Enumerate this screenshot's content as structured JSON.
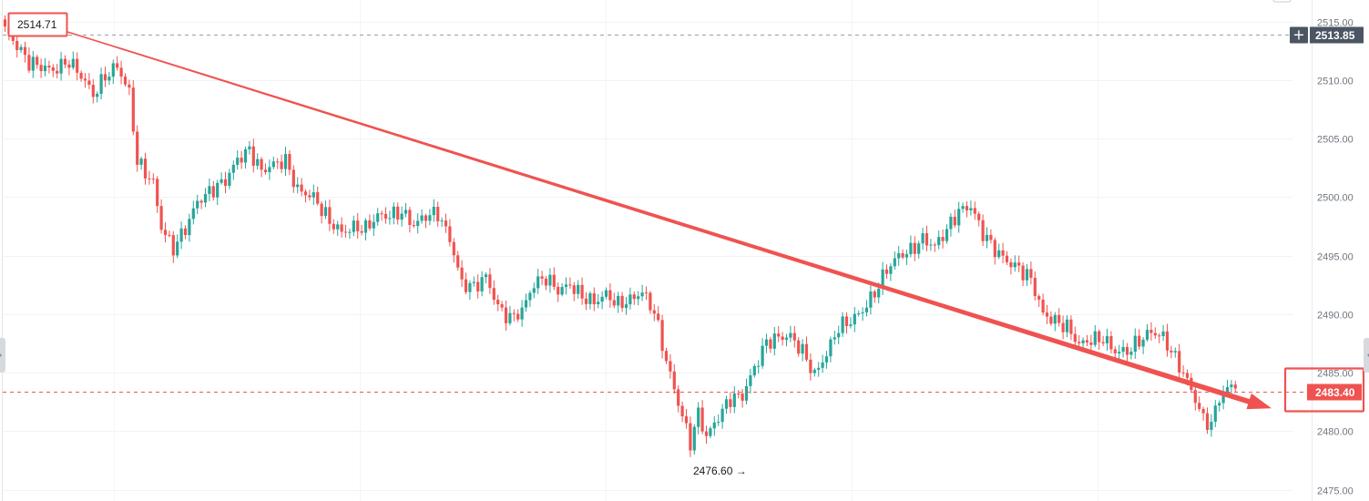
{
  "chart_data": {
    "type": "candlestick",
    "title": "",
    "xlabel": "",
    "ylabel": "",
    "ylim": [
      2475,
      2515
    ],
    "y_ticks": [
      "2515.00",
      "2510.00",
      "2505.00",
      "2500.00",
      "2495.00",
      "2490.00",
      "2485.00",
      "2480.00",
      "2475.00"
    ],
    "grid": true,
    "colors": {
      "up": "#26a69a",
      "down": "#ef5350",
      "trend": "#ef5350",
      "crosshair_label": "#4b5563"
    },
    "crosshair": {
      "value": 2513.85,
      "label": "2513.85"
    },
    "last_price": {
      "value": 2483.4,
      "label": "2483.40"
    },
    "start_annotation": {
      "value": 2514.71,
      "label": "2514.71"
    },
    "low_annotation": {
      "value": 2476.6,
      "label": "2476.60 →"
    },
    "trend_line": {
      "from": 2514.2,
      "to": 2482.5
    },
    "anchors": [
      [
        0,
        2514.3
      ],
      [
        6,
        2511.5
      ],
      [
        12,
        2510.8
      ],
      [
        16,
        2511.6
      ],
      [
        20,
        2509.9
      ],
      [
        22,
        2508.7
      ],
      [
        25,
        2510.3
      ],
      [
        28,
        2511.2
      ],
      [
        31,
        2508.9
      ],
      [
        33,
        2503.0
      ],
      [
        37,
        2501.2
      ],
      [
        39,
        2497.4
      ],
      [
        42,
        2495.6
      ],
      [
        45,
        2497.3
      ],
      [
        48,
        2499.6
      ],
      [
        52,
        2500.7
      ],
      [
        55,
        2501.4
      ],
      [
        58,
        2503.2
      ],
      [
        61,
        2504.0
      ],
      [
        64,
        2502.2
      ],
      [
        67,
        2502.8
      ],
      [
        70,
        2503.1
      ],
      [
        73,
        2500.6
      ],
      [
        77,
        2500.0
      ],
      [
        81,
        2497.9
      ],
      [
        84,
        2497.0
      ],
      [
        87,
        2497.4
      ],
      [
        90,
        2497.3
      ],
      [
        93,
        2498.4
      ],
      [
        96,
        2498.4
      ],
      [
        99,
        2498.7
      ],
      [
        102,
        2497.6
      ],
      [
        105,
        2498.4
      ],
      [
        108,
        2498.6
      ],
      [
        111,
        2496.4
      ],
      [
        114,
        2492.6
      ],
      [
        117,
        2492.3
      ],
      [
        120,
        2493.2
      ],
      [
        123,
        2490.6
      ],
      [
        126,
        2489.6
      ],
      [
        129,
        2490.3
      ],
      [
        132,
        2492.6
      ],
      [
        135,
        2493.1
      ],
      [
        138,
        2492.0
      ],
      [
        141,
        2492.5
      ],
      [
        144,
        2491.5
      ],
      [
        147,
        2491.0
      ],
      [
        150,
        2491.7
      ],
      [
        153,
        2490.8
      ],
      [
        156,
        2491.2
      ],
      [
        159,
        2491.9
      ],
      [
        162,
        2490.2
      ],
      [
        165,
        2486.0
      ],
      [
        168,
        2482.4
      ],
      [
        171,
        2479.0
      ],
      [
        173,
        2481.5
      ],
      [
        175,
        2479.5
      ],
      [
        178,
        2481.2
      ],
      [
        181,
        2482.8
      ],
      [
        184,
        2483.0
      ],
      [
        187,
        2485.4
      ],
      [
        190,
        2487.6
      ],
      [
        193,
        2488.0
      ],
      [
        196,
        2488.1
      ],
      [
        199,
        2486.8
      ],
      [
        202,
        2484.8
      ],
      [
        205,
        2486.6
      ],
      [
        208,
        2488.9
      ],
      [
        211,
        2489.4
      ],
      [
        214,
        2490.3
      ],
      [
        217,
        2491.8
      ],
      [
        220,
        2493.8
      ],
      [
        223,
        2495.0
      ],
      [
        226,
        2495.4
      ],
      [
        229,
        2496.4
      ],
      [
        232,
        2495.8
      ],
      [
        235,
        2497.2
      ],
      [
        238,
        2498.8
      ],
      [
        241,
        2499.2
      ],
      [
        244,
        2496.9
      ],
      [
        247,
        2495.5
      ],
      [
        250,
        2494.5
      ],
      [
        253,
        2493.9
      ],
      [
        256,
        2493.0
      ],
      [
        259,
        2490.0
      ],
      [
        262,
        2489.4
      ],
      [
        265,
        2488.9
      ],
      [
        268,
        2487.4
      ],
      [
        271,
        2487.8
      ],
      [
        274,
        2487.9
      ],
      [
        277,
        2486.8
      ],
      [
        280,
        2486.8
      ],
      [
        283,
        2487.7
      ],
      [
        286,
        2488.5
      ],
      [
        289,
        2488.0
      ],
      [
        292,
        2486.2
      ],
      [
        295,
        2484.3
      ],
      [
        297,
        2482.7
      ],
      [
        299,
        2481.0
      ],
      [
        301,
        2480.6
      ],
      [
        303,
        2482.9
      ],
      [
        305,
        2483.6
      ],
      [
        307,
        2484.1
      ]
    ]
  }
}
